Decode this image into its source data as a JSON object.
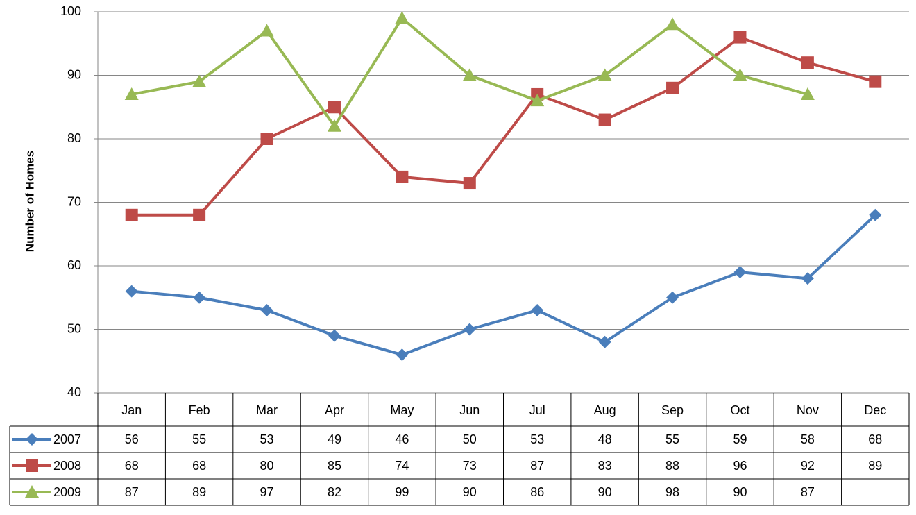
{
  "chart_data": {
    "type": "line",
    "y_label": "Number of Homes",
    "categories": [
      "Jan",
      "Feb",
      "Mar",
      "Apr",
      "May",
      "Jun",
      "Jul",
      "Aug",
      "Sep",
      "Oct",
      "Nov",
      "Dec"
    ],
    "series": [
      {
        "name": "2007",
        "color": "#4a7ebb",
        "marker": "diamond",
        "values": [
          56,
          55,
          53,
          49,
          46,
          50,
          53,
          48,
          55,
          59,
          58,
          68
        ]
      },
      {
        "name": "2008",
        "color": "#be4b48",
        "marker": "square",
        "values": [
          68,
          68,
          80,
          85,
          74,
          73,
          87,
          83,
          88,
          96,
          92,
          89
        ]
      },
      {
        "name": "2009",
        "color": "#98b954",
        "marker": "triangle",
        "values": [
          87,
          89,
          97,
          82,
          99,
          90,
          86,
          90,
          98,
          90,
          87,
          null
        ]
      }
    ],
    "ylim": [
      40,
      100
    ],
    "yticks": [
      40,
      50,
      60,
      70,
      80,
      90,
      100
    ],
    "grid": true,
    "data_table": true
  }
}
